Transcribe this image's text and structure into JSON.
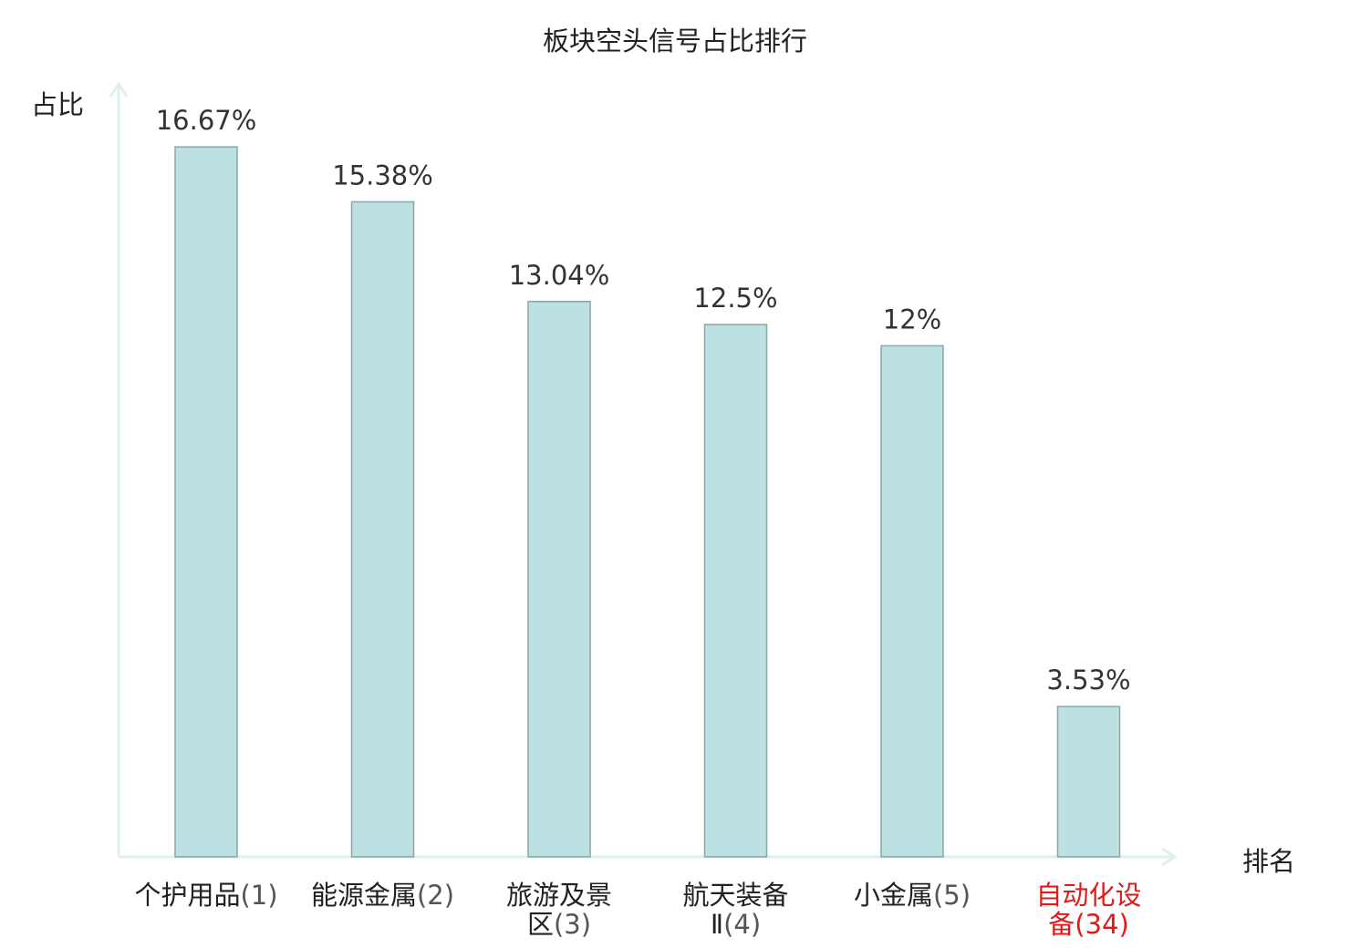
{
  "chart_data": {
    "type": "bar",
    "title": "板块空头信号占比排行",
    "ylabel": "占比",
    "xlabel": "排名",
    "categories": [
      {
        "name": "个护用品",
        "rank": "(1)",
        "highlight": false
      },
      {
        "name": "能源金属",
        "rank": "(2)",
        "highlight": false
      },
      {
        "name": "旅游及景区",
        "rank": "(3)",
        "highlight": false
      },
      {
        "name": "航天装备Ⅱ",
        "rank": "(4)",
        "highlight": false
      },
      {
        "name": "小金属",
        "rank": "(5)",
        "highlight": false
      },
      {
        "name": "自动化设备",
        "rank": "(34)",
        "highlight": true
      }
    ],
    "values": [
      16.67,
      15.38,
      13.04,
      12.5,
      12,
      3.53
    ],
    "value_labels": [
      "16.67%",
      "15.38%",
      "13.04%",
      "12.5%",
      "12%",
      "3.53%"
    ],
    "ylim": [
      0,
      18.3
    ],
    "grid": false,
    "colors": {
      "bar_fill": "#bde0e2",
      "bar_stroke": "#87a7a9",
      "axis": "#dff1ef",
      "highlight": "#e21a1a"
    }
  }
}
